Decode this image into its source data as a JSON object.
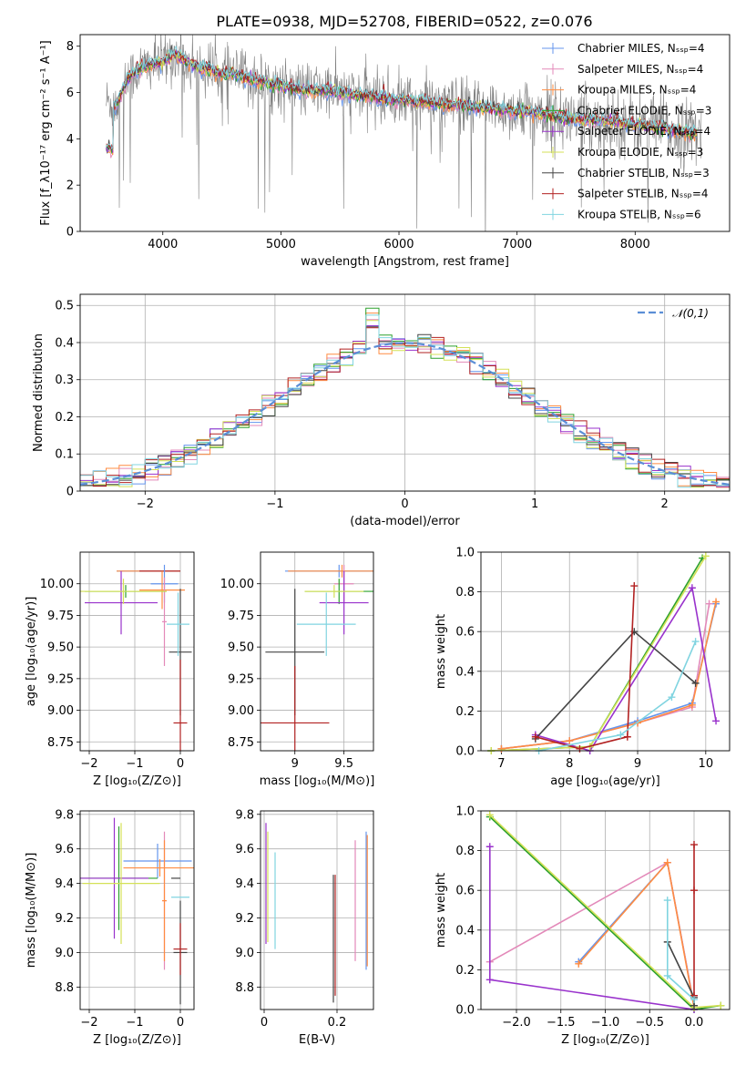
{
  "figure_title": "PLATE=0938, MJD=52708, FIBERID=0522, z=0.076",
  "colors": {
    "chabrier_miles": "#6495ed",
    "salpeter_miles": "#e389b9",
    "kroupa_miles": "#ff8c42",
    "chabrier_elodie": "#2ca02c",
    "salpeter_elodie": "#9932cc",
    "kroupa_elodie": "#d4e157",
    "chabrier_stelib": "#444444",
    "salpeter_stelib": "#b22222",
    "kroupa_stelib": "#80d4e0",
    "data": "#808080"
  },
  "chart_data": [
    {
      "id": "spectrum",
      "type": "line",
      "title": "PLATE=0938, MJD=52708, FIBERID=0522, z=0.076",
      "xlabel": "wavelength [Angstrom, rest frame]",
      "ylabel": "Flux [f_λ10⁻¹⁷ erg cm⁻² s⁻¹ A⁻¹]",
      "xlim": [
        3300,
        8800
      ],
      "ylim": [
        0,
        8.5
      ],
      "xticks": [
        4000,
        5000,
        6000,
        7000,
        8000
      ],
      "yticks": [
        0,
        2,
        4,
        6,
        8
      ],
      "grid": false,
      "legend_position": "top-right",
      "legend": [
        "Chabrier MILES, N_SSP=4",
        "Salpeter MILES, N_SSP=4",
        "Kroupa MILES, N_SSP=4",
        "Chabrier ELODIE, N_SSP=3",
        "Salpeter ELODIE, N_SSP=4",
        "Kroupa ELODIE, N_SSP=3",
        "Chabrier STELIB, N_SSP=3",
        "Salpeter STELIB, N_SSP=4",
        "Kroupa STELIB, N_SSP=6"
      ],
      "model_continuum": {
        "x": [
          3550,
          3600,
          3700,
          3800,
          3900,
          4000,
          4100,
          4200,
          4300,
          4400,
          4500,
          4600,
          4700,
          4800,
          4900,
          5000,
          5200,
          5400,
          5600,
          5800,
          6000,
          6200,
          6400,
          6600,
          6800,
          7000,
          7200,
          7400,
          7600,
          7800,
          8000,
          8200,
          8400,
          8500
        ],
        "y": [
          5.6,
          5.4,
          6.6,
          7.0,
          7.2,
          7.3,
          7.7,
          7.3,
          7.1,
          7.0,
          6.8,
          6.8,
          6.6,
          6.5,
          6.4,
          6.3,
          6.1,
          6.1,
          5.9,
          5.8,
          5.7,
          5.6,
          5.5,
          5.4,
          5.3,
          5.2,
          5.1,
          4.9,
          4.8,
          4.8,
          4.6,
          4.5,
          4.3,
          4.2
        ]
      },
      "data_spread": 1.2
    },
    {
      "id": "residuals",
      "type": "bar",
      "xlabel": "(data-model)/error",
      "ylabel": "Normed distribution",
      "xlim": [
        -2.5,
        2.5
      ],
      "ylim": [
        0,
        0.53
      ],
      "xticks": [
        -2,
        -1,
        0,
        1,
        2
      ],
      "yticks": [
        0.0,
        0.1,
        0.2,
        0.3,
        0.4,
        0.5
      ],
      "grid": true,
      "legend_position": "top-right",
      "legend": [
        "𝒩(0,1)"
      ],
      "bin_width": 0.1
    },
    {
      "id": "z_age",
      "type": "scatter",
      "xlabel": "Z [log₁₀(Z/Z⊙)]",
      "ylabel": "age  [log₁₀(age/yr)]",
      "xlim": [
        -2.2,
        0.3
      ],
      "ylim": [
        8.68,
        10.25
      ],
      "xticks": [
        -2,
        -1,
        0
      ],
      "yticks": [
        8.75,
        9.0,
        9.25,
        9.5,
        9.75,
        10.0
      ],
      "grid": true,
      "points": [
        {
          "x": -0.7,
          "y": 10.1,
          "xerr": 0.7,
          "yerr": 0.0,
          "series": "chabrier_miles"
        },
        {
          "x": -0.7,
          "y": 10.1,
          "xerr": 0.7,
          "yerr": 0.0,
          "series": "kroupa_miles"
        },
        {
          "x": -0.45,
          "y": 10.1,
          "xerr": 0.45,
          "yerr": 0.0,
          "series": "salpeter_stelib"
        },
        {
          "x": -0.35,
          "y": 10.0,
          "xerr": 0.3,
          "yerr": 0.15,
          "series": "chabrier_miles"
        },
        {
          "x": -0.4,
          "y": 9.95,
          "xerr": 0.5,
          "yerr": 0.15,
          "series": "kroupa_miles"
        },
        {
          "x": -0.35,
          "y": 9.7,
          "xerr": 0.05,
          "yerr": 0.35,
          "series": "salpeter_miles"
        },
        {
          "x": -1.2,
          "y": 9.94,
          "xerr": 0.9,
          "yerr": 0.05,
          "series": "chabrier_elodie"
        },
        {
          "x": -1.3,
          "y": 9.85,
          "xerr": 0.8,
          "yerr": 0.25,
          "series": "salpeter_elodie"
        },
        {
          "x": -1.25,
          "y": 9.94,
          "xerr": 0.95,
          "yerr": 0.1,
          "series": "kroupa_elodie"
        },
        {
          "x": 0.0,
          "y": 9.46,
          "xerr": 0.25,
          "yerr": 0.5,
          "series": "chabrier_stelib"
        },
        {
          "x": 0.0,
          "y": 8.9,
          "xerr": 0.15,
          "yerr": 0.5,
          "series": "salpeter_stelib"
        },
        {
          "x": -0.05,
          "y": 9.68,
          "xerr": 0.25,
          "yerr": 0.25,
          "series": "kroupa_stelib"
        }
      ]
    },
    {
      "id": "mass_age",
      "type": "scatter",
      "xlabel": "mass [log₁₀(M/M⊙)]",
      "ylabel": "",
      "xlim": [
        8.65,
        9.8
      ],
      "ylim": [
        8.68,
        10.25
      ],
      "xticks": [
        9.0,
        9.5
      ],
      "yticks": [
        8.75,
        9.0,
        9.25,
        9.5,
        9.75,
        10.0
      ],
      "grid": true,
      "points": [
        {
          "x": 9.45,
          "y": 10.1,
          "xerr": 0.55,
          "yerr": 0.05,
          "series": "chabrier_miles"
        },
        {
          "x": 9.48,
          "y": 10.1,
          "xerr": 0.55,
          "yerr": 0.05,
          "series": "kroupa_miles"
        },
        {
          "x": 9.5,
          "y": 10.0,
          "xerr": 0.1,
          "yerr": 0.15,
          "series": "salpeter_miles"
        },
        {
          "x": 9.45,
          "y": 9.94,
          "xerr": 0.35,
          "yerr": 0.1,
          "series": "chabrier_elodie"
        },
        {
          "x": 9.5,
          "y": 9.85,
          "xerr": 0.25,
          "yerr": 0.25,
          "series": "salpeter_elodie"
        },
        {
          "x": 9.4,
          "y": 9.94,
          "xerr": 0.3,
          "yerr": 0.05,
          "series": "kroupa_elodie"
        },
        {
          "x": 9.0,
          "y": 9.46,
          "xerr": 0.3,
          "yerr": 0.5,
          "series": "chabrier_stelib"
        },
        {
          "x": 9.0,
          "y": 8.9,
          "xerr": 0.35,
          "yerr": 0.45,
          "series": "salpeter_stelib"
        },
        {
          "x": 9.32,
          "y": 9.68,
          "xerr": 0.3,
          "yerr": 0.25,
          "series": "kroupa_stelib"
        }
      ]
    },
    {
      "id": "age_weight",
      "type": "line",
      "xlabel": "age  [log₁₀(age/yr)]",
      "ylabel": "mass weight",
      "xlim": [
        6.7,
        10.35
      ],
      "ylim": [
        0,
        1.0
      ],
      "xticks": [
        7,
        8,
        9,
        10
      ],
      "yticks": [
        0.0,
        0.2,
        0.4,
        0.6,
        0.8,
        1.0
      ],
      "grid": true,
      "series": [
        {
          "key": "chabrier_miles",
          "x": [
            7.0,
            8.0,
            9.0,
            9.8,
            10.15
          ],
          "y": [
            0.01,
            0.05,
            0.15,
            0.24,
            0.74
          ]
        },
        {
          "key": "salpeter_miles",
          "x": [
            7.0,
            8.0,
            9.0,
            9.8,
            10.05
          ],
          "y": [
            0.01,
            0.05,
            0.14,
            0.22,
            0.74
          ]
        },
        {
          "key": "kroupa_miles",
          "x": [
            7.0,
            8.0,
            9.0,
            9.8,
            10.15
          ],
          "y": [
            0.01,
            0.05,
            0.14,
            0.23,
            0.75
          ]
        },
        {
          "key": "chabrier_elodie",
          "x": [
            6.85,
            8.3,
            9.95
          ],
          "y": [
            0.0,
            0.02,
            0.97
          ]
        },
        {
          "key": "salpeter_elodie",
          "x": [
            7.5,
            8.3,
            9.8,
            10.15
          ],
          "y": [
            0.08,
            0.0,
            0.82,
            0.15
          ]
        },
        {
          "key": "kroupa_elodie",
          "x": [
            6.85,
            8.3,
            10.0
          ],
          "y": [
            0.0,
            0.02,
            0.98
          ]
        },
        {
          "key": "chabrier_stelib",
          "x": [
            7.5,
            8.95,
            9.85
          ],
          "y": [
            0.06,
            0.6,
            0.34
          ]
        },
        {
          "key": "salpeter_stelib",
          "x": [
            7.5,
            8.15,
            8.85,
            8.95
          ],
          "y": [
            0.07,
            0.01,
            0.07,
            0.83
          ]
        },
        {
          "key": "kroupa_stelib",
          "x": [
            7.55,
            8.75,
            9.5,
            9.85
          ],
          "y": [
            0.0,
            0.08,
            0.27,
            0.55
          ]
        }
      ]
    },
    {
      "id": "z_mass",
      "type": "scatter",
      "xlabel": "Z [log₁₀(Z/Z⊙)]",
      "ylabel": "mass [log₁₀(M/M⊙)]",
      "xlim": [
        -2.2,
        0.3
      ],
      "ylim": [
        8.67,
        9.82
      ],
      "xticks": [
        -2,
        -1,
        0
      ],
      "yticks": [
        8.8,
        9.0,
        9.2,
        9.4,
        9.6,
        9.8
      ],
      "grid": true,
      "points": [
        {
          "x": -0.5,
          "y": 9.53,
          "xerr": 0.75,
          "yerr": 0.1,
          "series": "chabrier_miles"
        },
        {
          "x": -0.45,
          "y": 9.49,
          "xerr": 0.8,
          "yerr": 0.05,
          "series": "kroupa_miles"
        },
        {
          "x": -0.35,
          "y": 9.3,
          "xerr": 0.05,
          "yerr": 0.4,
          "series": "salpeter_miles"
        },
        {
          "x": -0.35,
          "y": 9.3,
          "xerr": 0.05,
          "yerr": 0.35,
          "series": "kroupa_miles"
        },
        {
          "x": -1.35,
          "y": 9.43,
          "xerr": 0.85,
          "yerr": 0.3,
          "series": "chabrier_elodie"
        },
        {
          "x": -1.45,
          "y": 9.43,
          "xerr": 0.75,
          "yerr": 0.35,
          "series": "salpeter_elodie"
        },
        {
          "x": -1.3,
          "y": 9.4,
          "xerr": 0.85,
          "yerr": 0.35,
          "series": "kroupa_elodie"
        },
        {
          "x": -0.1,
          "y": 9.43,
          "xerr": 0.1,
          "yerr": 0.0,
          "series": "chabrier_stelib"
        },
        {
          "x": 0.0,
          "y": 9.0,
          "xerr": 0.15,
          "yerr": 0.3,
          "series": "chabrier_stelib"
        },
        {
          "x": 0.0,
          "y": 9.02,
          "xerr": 0.15,
          "yerr": 0.15,
          "series": "salpeter_stelib"
        },
        {
          "x": 0.0,
          "y": 9.32,
          "xerr": 0.2,
          "yerr": 0.0,
          "series": "kroupa_stelib"
        }
      ]
    },
    {
      "id": "ebv_mass",
      "type": "scatter",
      "xlabel": "E(B-V)",
      "ylabel": "",
      "xlim": [
        -0.01,
        0.3
      ],
      "ylim": [
        8.67,
        9.82
      ],
      "xticks": [
        0.0,
        0.2
      ],
      "yticks": [
        8.8,
        9.0,
        9.2,
        9.4,
        9.6,
        9.8
      ],
      "grid": true,
      "points": [
        {
          "x": 0.005,
          "y": 9.4,
          "yerr": 0.35,
          "series": "salpeter_elodie"
        },
        {
          "x": 0.01,
          "y": 9.38,
          "yerr": 0.32,
          "series": "kroupa_elodie"
        },
        {
          "x": 0.03,
          "y": 9.3,
          "yerr": 0.28,
          "series": "kroupa_stelib"
        },
        {
          "x": 0.19,
          "y": 9.08,
          "yerr": 0.37,
          "series": "chabrier_stelib"
        },
        {
          "x": 0.195,
          "y": 9.1,
          "yerr": 0.35,
          "series": "salpeter_stelib"
        },
        {
          "x": 0.25,
          "y": 9.3,
          "yerr": 0.35,
          "series": "salpeter_miles"
        },
        {
          "x": 0.28,
          "y": 9.3,
          "yerr": 0.4,
          "series": "chabrier_miles"
        },
        {
          "x": 0.283,
          "y": 9.3,
          "yerr": 0.38,
          "series": "kroupa_miles"
        }
      ]
    },
    {
      "id": "z_weight",
      "type": "line",
      "xlabel": "Z [log₁₀(Z/Z⊙)]",
      "ylabel": "mass weight",
      "xlim": [
        -2.4,
        0.4
      ],
      "ylim": [
        0,
        1.0
      ],
      "xticks": [
        -2.0,
        -1.5,
        -1.0,
        -0.5,
        0.0
      ],
      "yticks": [
        0.0,
        0.2,
        0.4,
        0.6,
        0.8,
        1.0
      ],
      "grid": true,
      "series": [
        {
          "key": "chabrier_miles",
          "x": [
            -1.3,
            -0.3,
            0.0
          ],
          "y": [
            0.24,
            0.74,
            0.02
          ]
        },
        {
          "key": "salpeter_miles",
          "x": [
            -2.3,
            -0.3,
            0.0
          ],
          "y": [
            0.24,
            0.74,
            0.02
          ]
        },
        {
          "key": "kroupa_miles",
          "x": [
            -1.3,
            -0.3,
            0.0
          ],
          "y": [
            0.23,
            0.74,
            0.01
          ]
        },
        {
          "key": "chabrier_elodie",
          "x": [
            -2.3,
            0.0,
            0.3
          ],
          "y": [
            0.97,
            0.0,
            0.02
          ]
        },
        {
          "key": "salpeter_elodie",
          "x": [
            -2.3,
            -2.3,
            0.0
          ],
          "y": [
            0.82,
            0.15,
            0.0
          ]
        },
        {
          "key": "kroupa_elodie",
          "x": [
            -2.3,
            0.0,
            0.3
          ],
          "y": [
            0.98,
            0.01,
            0.02
          ]
        },
        {
          "key": "chabrier_stelib",
          "x": [
            -0.3,
            0.0,
            0.0
          ],
          "y": [
            0.34,
            0.06,
            0.02
          ]
        },
        {
          "key": "salpeter_stelib",
          "x": [
            0.0,
            0.0,
            0.0
          ],
          "y": [
            0.83,
            0.6,
            0.07
          ]
        },
        {
          "key": "kroupa_stelib",
          "x": [
            -0.3,
            -0.3,
            0.0
          ],
          "y": [
            0.55,
            0.17,
            0.05
          ]
        }
      ]
    }
  ]
}
